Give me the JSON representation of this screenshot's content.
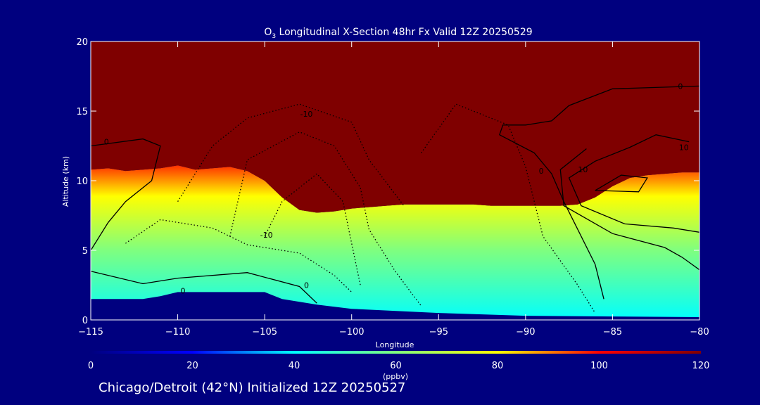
{
  "chart_data": {
    "type": "heatmap",
    "title_parts": [
      "O",
      "3",
      " Longitudinal X-Section 48hr  Fx Valid 12Z 20250529"
    ],
    "xlabel": "Longitude",
    "ylabel": "Altitude (km)",
    "xlim": [
      -115,
      -80
    ],
    "ylim": [
      0,
      20
    ],
    "x_ticks": [
      -115,
      -110,
      -105,
      -100,
      -95,
      -90,
      -85,
      -80
    ],
    "y_ticks": [
      0,
      5,
      10,
      15,
      20
    ],
    "colorbar": {
      "label": "(ppbv)",
      "range": [
        0,
        120
      ],
      "ticks": [
        0,
        20,
        40,
        60,
        80,
        100,
        120
      ],
      "colors": [
        "#00007f",
        "#0000ff",
        "#00ffff",
        "#7fff7f",
        "#ffff00",
        "#ff0000",
        "#7f0000"
      ]
    },
    "stratospheric_ozone_base_km": [
      [
        -115,
        10.8
      ],
      [
        -114,
        10.9
      ],
      [
        -113,
        10.7
      ],
      [
        -112,
        10.8
      ],
      [
        -111,
        10.9
      ],
      [
        -110,
        11.1
      ],
      [
        -109,
        10.8
      ],
      [
        -108,
        10.9
      ],
      [
        -107,
        11.0
      ],
      [
        -106,
        10.7
      ],
      [
        -105,
        10.0
      ],
      [
        -104,
        8.8
      ],
      [
        -103,
        7.9
      ],
      [
        -102,
        7.7
      ],
      [
        -101,
        7.8
      ],
      [
        -100,
        8.0
      ],
      [
        -99,
        8.1
      ],
      [
        -98,
        8.2
      ],
      [
        -97,
        8.3
      ],
      [
        -96,
        8.3
      ],
      [
        -95,
        8.3
      ],
      [
        -94,
        8.3
      ],
      [
        -93,
        8.3
      ],
      [
        -92,
        8.2
      ],
      [
        -91,
        8.2
      ],
      [
        -90,
        8.2
      ],
      [
        -89,
        8.2
      ],
      [
        -88,
        8.2
      ],
      [
        -87,
        8.3
      ],
      [
        -86,
        8.8
      ],
      [
        -85,
        9.6
      ],
      [
        -84,
        10.2
      ],
      [
        -83,
        10.4
      ],
      [
        -82,
        10.5
      ],
      [
        -81,
        10.6
      ],
      [
        -80,
        10.6
      ]
    ],
    "surface_boundary_km": [
      [
        -115,
        1.5
      ],
      [
        -112,
        1.5
      ],
      [
        -111,
        1.7
      ],
      [
        -110,
        2.0
      ],
      [
        -108,
        2.0
      ],
      [
        -105,
        2.0
      ],
      [
        -104,
        1.5
      ],
      [
        -102,
        1.1
      ],
      [
        -100,
        0.8
      ],
      [
        -95,
        0.5
      ],
      [
        -90,
        0.3
      ],
      [
        -85,
        0.25
      ],
      [
        -80,
        0.2
      ]
    ],
    "contour_labels": [
      {
        "x": -114.1,
        "y": 12.8,
        "text": "0"
      },
      {
        "x": -102.6,
        "y": 14.8,
        "text": "-10"
      },
      {
        "x": -104.9,
        "y": 6.1,
        "text": "-10"
      },
      {
        "x": -102.6,
        "y": 2.5,
        "text": "0"
      },
      {
        "x": -109.7,
        "y": 2.1,
        "text": "0"
      },
      {
        "x": -89.1,
        "y": 10.7,
        "text": "0"
      },
      {
        "x": -81.1,
        "y": 16.8,
        "text": "0"
      },
      {
        "x": -80.9,
        "y": 12.4,
        "text": "10"
      },
      {
        "x": -86.7,
        "y": 10.8,
        "text": "10"
      }
    ]
  },
  "footer": "Chicago/Detroit (42°N) Initialized 12Z 20250527"
}
